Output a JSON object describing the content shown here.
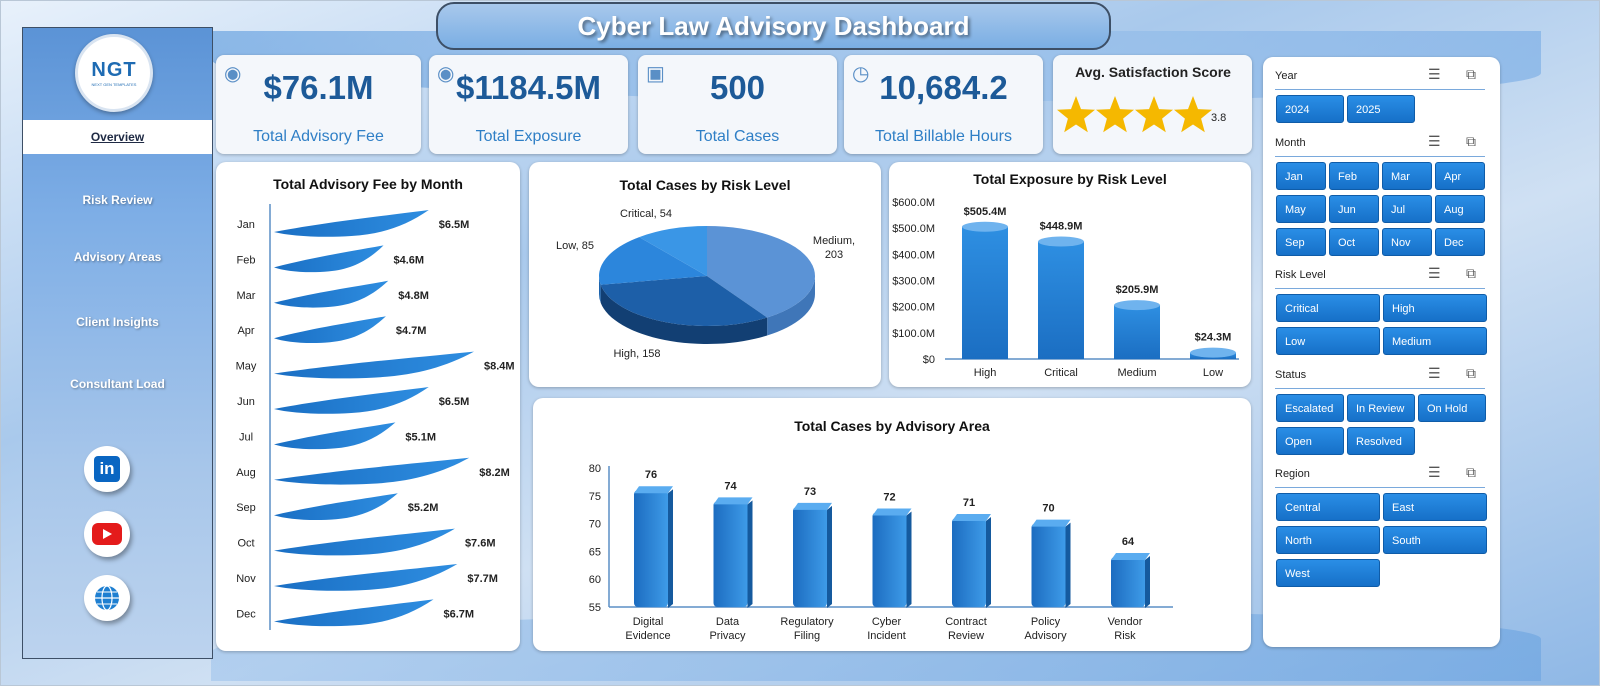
{
  "title": "Cyber Law Advisory Dashboard",
  "logo": {
    "text": "NGT",
    "sub": "NEXT GEN TEMPLATES"
  },
  "sidebar": {
    "items": [
      {
        "label": "Overview"
      },
      {
        "label": "Risk Review"
      },
      {
        "label": "Advisory Areas"
      },
      {
        "label": "Client Insights"
      },
      {
        "label": "Consultant Load"
      }
    ],
    "social": [
      "linkedin-icon",
      "youtube-icon",
      "globe-icon"
    ]
  },
  "kpis": [
    {
      "value": "$76.1M",
      "label": "Total Advisory Fee",
      "icon": "money-bag-icon"
    },
    {
      "value": "$1184.5M",
      "label": "Total Exposure",
      "icon": "money-bag-icon"
    },
    {
      "value": "500",
      "label": "Total Cases",
      "icon": "clipboard-icon"
    },
    {
      "value": "10,684.2",
      "label": "Total Billable Hours",
      "icon": "clock-icon"
    }
  ],
  "satisfaction": {
    "label": "Avg. Satisfaction Score",
    "value": "3.8",
    "stars": 3.8
  },
  "chart_data": [
    {
      "type": "bar",
      "title": "Total Advisory Fee by Month",
      "categories": [
        "Jan",
        "Feb",
        "Mar",
        "Apr",
        "May",
        "Jun",
        "Jul",
        "Aug",
        "Sep",
        "Oct",
        "Nov",
        "Dec"
      ],
      "values": [
        6.5,
        4.6,
        4.8,
        4.7,
        8.4,
        6.5,
        5.1,
        8.2,
        5.2,
        7.6,
        7.7,
        6.7
      ],
      "labels": [
        "$6.5M",
        "$4.6M",
        "$4.8M",
        "$4.7M",
        "$8.4M",
        "$6.5M",
        "$5.1M",
        "$8.2M",
        "$5.2M",
        "$7.6M",
        "$7.7M",
        "$6.7M"
      ],
      "orientation": "horizontal"
    },
    {
      "type": "pie",
      "title": "Total Cases by Risk Level",
      "categories": [
        "Medium",
        "High",
        "Low",
        "Critical"
      ],
      "values": [
        203,
        158,
        85,
        54
      ]
    },
    {
      "type": "bar",
      "title": "Total Exposure  by Risk Level",
      "categories": [
        "High",
        "Critical",
        "Medium",
        "Low"
      ],
      "values": [
        505.4,
        448.9,
        205.9,
        24.3
      ],
      "labels": [
        "$505.4M",
        "$448.9M",
        "$205.9M",
        "$24.3M"
      ],
      "yticks": [
        "$0",
        "$100.0M",
        "$200.0M",
        "$300.0M",
        "$400.0M",
        "$500.0M",
        "$600.0M"
      ],
      "ylim": [
        0,
        600
      ]
    },
    {
      "type": "bar",
      "title": "Total Cases by Advisory Area",
      "categories": [
        "Digital Evidence",
        "Data Privacy",
        "Regulatory Filing",
        "Cyber Incident",
        "Contract Review",
        "Policy Advisory",
        "Vendor Risk"
      ],
      "values": [
        76,
        74,
        73,
        72,
        71,
        70,
        64
      ],
      "yticks": [
        "55",
        "60",
        "65",
        "70",
        "75",
        "80"
      ],
      "ylim": [
        55,
        80
      ]
    }
  ],
  "slicers": {
    "year": {
      "label": "Year",
      "items": [
        "2024",
        "2025"
      ]
    },
    "month": {
      "label": "Month",
      "items": [
        "Jan",
        "Feb",
        "Mar",
        "Apr",
        "May",
        "Jun",
        "Jul",
        "Aug",
        "Sep",
        "Oct",
        "Nov",
        "Dec"
      ]
    },
    "risk": {
      "label": "Risk Level",
      "items": [
        "Critical",
        "High",
        "Low",
        "Medium"
      ]
    },
    "status": {
      "label": "Status",
      "items": [
        "Escalated",
        "In Review",
        "On Hold",
        "Open",
        "Resolved"
      ]
    },
    "region": {
      "label": "Region",
      "items": [
        "Central",
        "East",
        "North",
        "South",
        "West"
      ]
    }
  },
  "colors": {
    "accent": "#1670c8",
    "kpi_value": "#1d5a98",
    "star": "#f5b800"
  }
}
